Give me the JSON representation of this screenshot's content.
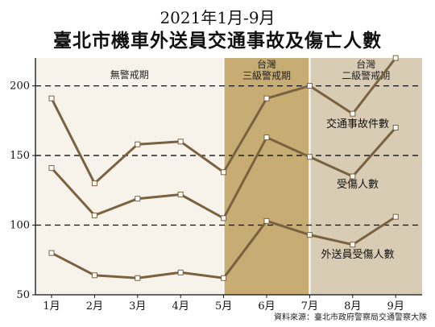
{
  "title_line1": "2021年1月-9月",
  "title_line2": "臺北市機車外送員交通事故及傷亡人數",
  "source": "資料來源：臺北市政府警察局交通警察大隊",
  "chart_data": {
    "type": "line",
    "categories": [
      "1月",
      "2月",
      "3月",
      "4月",
      "5月",
      "6月",
      "7月",
      "8月",
      "9月"
    ],
    "ylim": [
      50,
      220
    ],
    "yticks": [
      50,
      100,
      150,
      200
    ],
    "series": [
      {
        "name": "交通事故件數",
        "values": [
          191,
          130,
          158,
          160,
          138,
          191,
          200,
          180,
          220
        ]
      },
      {
        "name": "受傷人數",
        "values": [
          141,
          107,
          119,
          122,
          105,
          163,
          149,
          135,
          170
        ]
      },
      {
        "name": "外送員受傷人數",
        "values": [
          80,
          64,
          62,
          66,
          62,
          103,
          93,
          86,
          106
        ]
      }
    ],
    "periods": [
      {
        "label": "無警戒期",
        "color": "#f8f3ea"
      },
      {
        "label": "台灣\n三級警戒期",
        "color": "#c7ac74"
      },
      {
        "label": "台灣\n二級警戒期",
        "color": "#d8ccb5"
      }
    ],
    "line_color": "#7a6140",
    "dashed_gridlines": [
      100,
      150,
      200
    ]
  }
}
